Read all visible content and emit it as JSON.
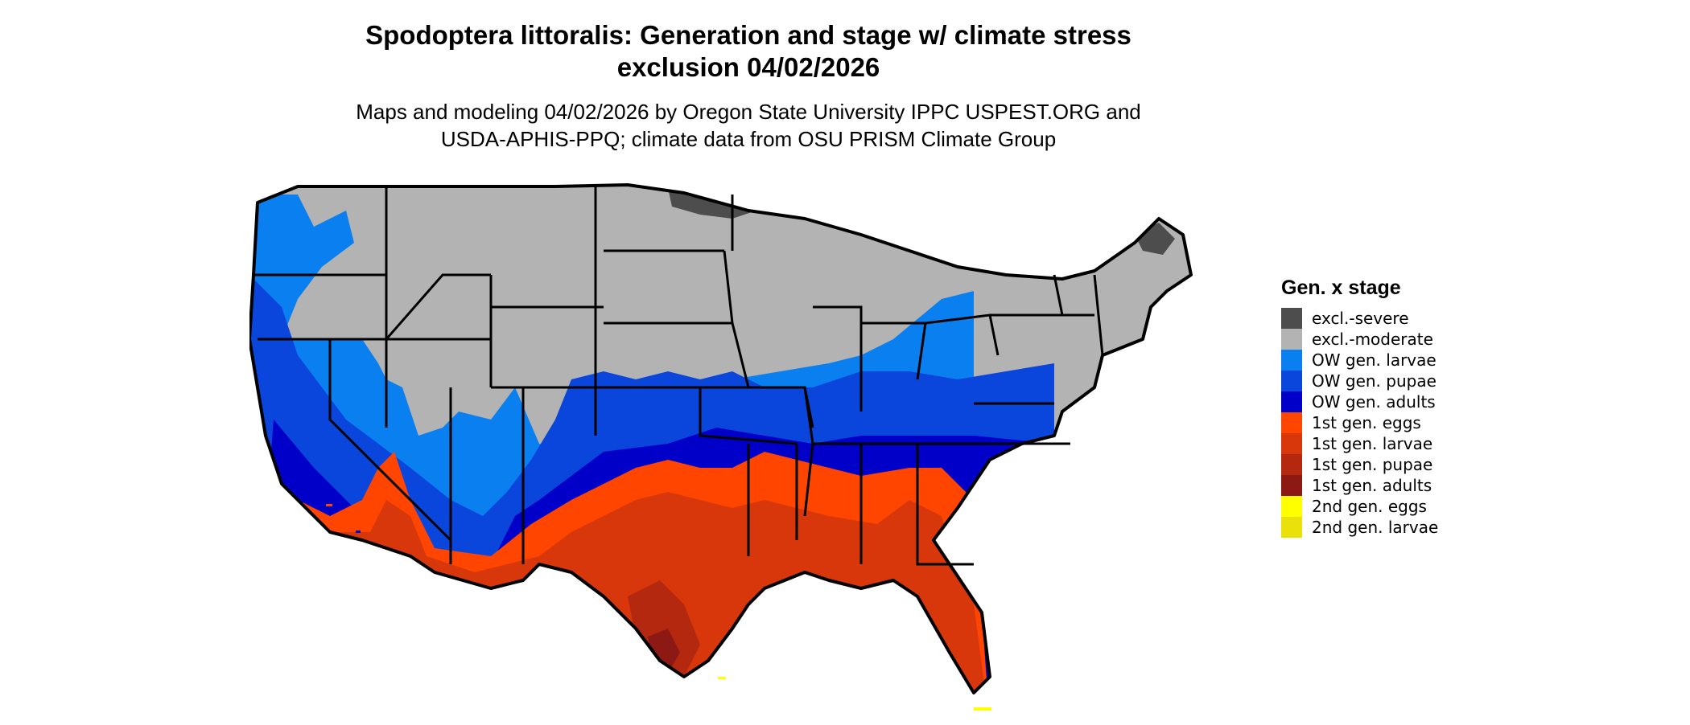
{
  "title_line1": "Spodoptera littoralis: Generation and stage w/ climate stress",
  "title_line2": "exclusion 04/02/2026",
  "subtitle_line1": "Maps and modeling 04/02/2026 by Oregon State University IPPC USPEST.ORG and",
  "subtitle_line2": "USDA-APHIS-PPQ; climate data from OSU PRISM Climate Group",
  "legend": {
    "title": "Gen. x stage",
    "items": [
      {
        "label": "excl.-severe",
        "color": "#4d4d4d"
      },
      {
        "label": "excl.-moderate",
        "color": "#b3b3b3"
      },
      {
        "label": "OW gen. larvae",
        "color": "#0a7ff0"
      },
      {
        "label": "OW gen. pupae",
        "color": "#0a46dc"
      },
      {
        "label": "OW gen. adults",
        "color": "#0000c8"
      },
      {
        "label": "1st gen. eggs",
        "color": "#ff4500"
      },
      {
        "label": "1st gen. larvae",
        "color": "#d7370a"
      },
      {
        "label": "1st gen. pupae",
        "color": "#b4280f"
      },
      {
        "label": "1st gen. adults",
        "color": "#8c1914"
      },
      {
        "label": "2nd gen. eggs",
        "color": "#ffff00"
      },
      {
        "label": "2nd gen. larvae",
        "color": "#ebe10a"
      }
    ]
  }
}
